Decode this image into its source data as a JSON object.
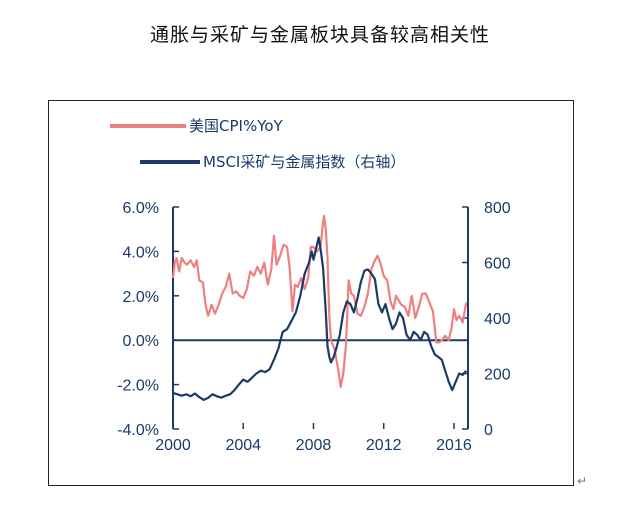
{
  "page": {
    "title": "通胀与采矿与金属板块具备较高相关性",
    "return_mark": "↵"
  },
  "chart_data": {
    "type": "line",
    "title": "通胀与采矿与金属板块具备较高相关性",
    "legend_position": "top-left",
    "grid": false,
    "colors": {
      "cpi": "#f08080",
      "msci": "#1b3a66",
      "axis": "#1a3a6b",
      "zero_line": "#1b3a66"
    },
    "x_axis": {
      "ticks": [
        "2000",
        "2004",
        "2008",
        "2012",
        "2016"
      ],
      "xlim": [
        2000,
        2016.8
      ]
    },
    "y_left": {
      "ticks": [
        "6.0%",
        "4.0%",
        "2.0%",
        "0.0%",
        "-2.0%",
        "-4.0%"
      ],
      "ylim": [
        -4,
        6
      ]
    },
    "y_right": {
      "ticks": [
        "800",
        "600",
        "400",
        "200",
        "0"
      ],
      "ylim": [
        0,
        800
      ]
    },
    "series": [
      {
        "name": "美国CPI%YoY",
        "axis": "left",
        "color": "#f08080",
        "points": [
          [
            2000.0,
            2.8
          ],
          [
            2000.1,
            3.5
          ],
          [
            2000.2,
            3.7
          ],
          [
            2000.35,
            3.1
          ],
          [
            2000.5,
            3.7
          ],
          [
            2000.65,
            3.5
          ],
          [
            2000.8,
            3.4
          ],
          [
            2001.0,
            3.6
          ],
          [
            2001.2,
            3.3
          ],
          [
            2001.35,
            3.6
          ],
          [
            2001.5,
            2.7
          ],
          [
            2001.7,
            2.6
          ],
          [
            2001.85,
            1.6
          ],
          [
            2002.0,
            1.1
          ],
          [
            2002.2,
            1.6
          ],
          [
            2002.4,
            1.2
          ],
          [
            2002.6,
            1.6
          ],
          [
            2002.8,
            2.1
          ],
          [
            2003.0,
            2.4
          ],
          [
            2003.2,
            3.0
          ],
          [
            2003.4,
            2.1
          ],
          [
            2003.6,
            2.2
          ],
          [
            2003.8,
            2.0
          ],
          [
            2004.0,
            1.9
          ],
          [
            2004.2,
            2.3
          ],
          [
            2004.4,
            3.1
          ],
          [
            2004.6,
            2.9
          ],
          [
            2004.8,
            3.3
          ],
          [
            2005.0,
            3.0
          ],
          [
            2005.2,
            3.5
          ],
          [
            2005.4,
            2.5
          ],
          [
            2005.6,
            3.2
          ],
          [
            2005.75,
            4.7
          ],
          [
            2005.9,
            3.4
          ],
          [
            2006.1,
            3.8
          ],
          [
            2006.3,
            4.3
          ],
          [
            2006.5,
            4.2
          ],
          [
            2006.65,
            3.2
          ],
          [
            2006.8,
            1.3
          ],
          [
            2006.95,
            2.5
          ],
          [
            2007.1,
            2.4
          ],
          [
            2007.3,
            2.8
          ],
          [
            2007.5,
            2.3
          ],
          [
            2007.7,
            2.8
          ],
          [
            2007.85,
            4.2
          ],
          [
            2008.0,
            4.2
          ],
          [
            2008.2,
            4.0
          ],
          [
            2008.4,
            4.2
          ],
          [
            2008.5,
            5.0
          ],
          [
            2008.6,
            5.6
          ],
          [
            2008.7,
            5.0
          ],
          [
            2008.8,
            3.7
          ],
          [
            2008.9,
            1.1
          ],
          [
            2009.0,
            0.0
          ],
          [
            2009.2,
            -0.4
          ],
          [
            2009.4,
            -1.3
          ],
          [
            2009.55,
            -2.1
          ],
          [
            2009.7,
            -1.5
          ],
          [
            2009.85,
            -0.2
          ],
          [
            2010.0,
            2.7
          ],
          [
            2010.15,
            2.1
          ],
          [
            2010.3,
            2.0
          ],
          [
            2010.5,
            1.2
          ],
          [
            2010.7,
            1.1
          ],
          [
            2010.9,
            1.5
          ],
          [
            2011.1,
            2.1
          ],
          [
            2011.3,
            3.2
          ],
          [
            2011.5,
            3.6
          ],
          [
            2011.65,
            3.8
          ],
          [
            2011.8,
            3.5
          ],
          [
            2012.0,
            2.9
          ],
          [
            2012.2,
            2.7
          ],
          [
            2012.4,
            1.7
          ],
          [
            2012.55,
            1.4
          ],
          [
            2012.7,
            2.0
          ],
          [
            2012.85,
            1.8
          ],
          [
            2013.0,
            1.6
          ],
          [
            2013.2,
            1.5
          ],
          [
            2013.4,
            1.1
          ],
          [
            2013.6,
            2.0
          ],
          [
            2013.8,
            1.0
          ],
          [
            2014.0,
            1.5
          ],
          [
            2014.2,
            2.1
          ],
          [
            2014.4,
            2.1
          ],
          [
            2014.6,
            1.7
          ],
          [
            2014.8,
            1.3
          ],
          [
            2015.0,
            -0.1
          ],
          [
            2015.15,
            -0.1
          ],
          [
            2015.3,
            0.0
          ],
          [
            2015.5,
            0.2
          ],
          [
            2015.7,
            0.0
          ],
          [
            2015.85,
            0.5
          ],
          [
            2016.0,
            1.4
          ],
          [
            2016.15,
            0.9
          ],
          [
            2016.3,
            1.1
          ],
          [
            2016.5,
            0.8
          ],
          [
            2016.7,
            1.7
          ]
        ]
      },
      {
        "name": "MSCI采矿与金属指数（右轴）",
        "axis": "right",
        "color": "#1b3a66",
        "points": [
          [
            2000.0,
            130
          ],
          [
            2000.25,
            125
          ],
          [
            2000.5,
            120
          ],
          [
            2000.75,
            125
          ],
          [
            2001.0,
            118
          ],
          [
            2001.25,
            128
          ],
          [
            2001.5,
            115
          ],
          [
            2001.75,
            105
          ],
          [
            2002.0,
            112
          ],
          [
            2002.25,
            125
          ],
          [
            2002.5,
            118
          ],
          [
            2002.75,
            113
          ],
          [
            2003.0,
            120
          ],
          [
            2003.25,
            125
          ],
          [
            2003.5,
            140
          ],
          [
            2003.75,
            160
          ],
          [
            2004.0,
            178
          ],
          [
            2004.25,
            170
          ],
          [
            2004.5,
            185
          ],
          [
            2004.75,
            200
          ],
          [
            2005.0,
            210
          ],
          [
            2005.25,
            205
          ],
          [
            2005.5,
            215
          ],
          [
            2005.75,
            250
          ],
          [
            2006.0,
            290
          ],
          [
            2006.25,
            350
          ],
          [
            2006.5,
            360
          ],
          [
            2006.75,
            390
          ],
          [
            2007.0,
            420
          ],
          [
            2007.25,
            480
          ],
          [
            2007.5,
            560
          ],
          [
            2007.75,
            600
          ],
          [
            2007.9,
            640
          ],
          [
            2008.0,
            610
          ],
          [
            2008.15,
            650
          ],
          [
            2008.3,
            690
          ],
          [
            2008.4,
            650
          ],
          [
            2008.55,
            580
          ],
          [
            2008.7,
            420
          ],
          [
            2008.8,
            300
          ],
          [
            2008.9,
            260
          ],
          [
            2009.0,
            240
          ],
          [
            2009.15,
            260
          ],
          [
            2009.3,
            290
          ],
          [
            2009.5,
            340
          ],
          [
            2009.7,
            420
          ],
          [
            2009.9,
            460
          ],
          [
            2010.1,
            450
          ],
          [
            2010.3,
            420
          ],
          [
            2010.5,
            470
          ],
          [
            2010.7,
            530
          ],
          [
            2010.9,
            570
          ],
          [
            2011.1,
            575
          ],
          [
            2011.3,
            560
          ],
          [
            2011.5,
            540
          ],
          [
            2011.7,
            450
          ],
          [
            2011.9,
            420
          ],
          [
            2012.1,
            450
          ],
          [
            2012.3,
            400
          ],
          [
            2012.5,
            360
          ],
          [
            2012.7,
            380
          ],
          [
            2012.9,
            420
          ],
          [
            2013.1,
            400
          ],
          [
            2013.3,
            340
          ],
          [
            2013.5,
            320
          ],
          [
            2013.7,
            350
          ],
          [
            2013.9,
            340
          ],
          [
            2014.1,
            320
          ],
          [
            2014.3,
            350
          ],
          [
            2014.5,
            340
          ],
          [
            2014.7,
            300
          ],
          [
            2014.9,
            270
          ],
          [
            2015.1,
            260
          ],
          [
            2015.3,
            250
          ],
          [
            2015.5,
            210
          ],
          [
            2015.7,
            170
          ],
          [
            2015.9,
            140
          ],
          [
            2016.1,
            170
          ],
          [
            2016.3,
            200
          ],
          [
            2016.5,
            195
          ],
          [
            2016.7,
            210
          ]
        ]
      }
    ]
  }
}
